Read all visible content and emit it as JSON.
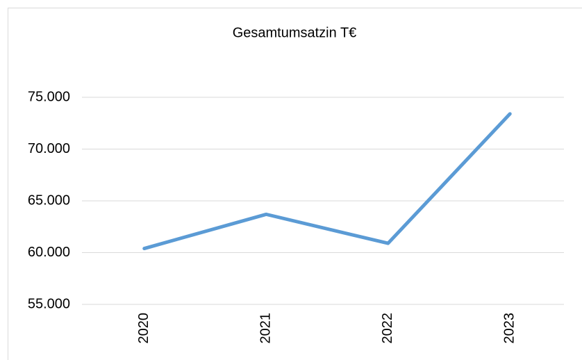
{
  "chart_data": {
    "type": "line",
    "title": "Gesamtumsatzin T€",
    "categories": [
      "2020",
      "2021",
      "2022",
      "2023"
    ],
    "series": [
      {
        "name": "Gesamtumsatz",
        "color": "#5b9bd5",
        "values": [
          60400,
          63700,
          60900,
          73400
        ]
      }
    ],
    "ylim": [
      55000,
      75000
    ],
    "yticks": [
      {
        "value": 55000,
        "label": "55.000"
      },
      {
        "value": 60000,
        "label": "60.000"
      },
      {
        "value": 65000,
        "label": "65.000"
      },
      {
        "value": 70000,
        "label": "70.000"
      },
      {
        "value": 75000,
        "label": "75.000"
      }
    ],
    "grid": true
  }
}
